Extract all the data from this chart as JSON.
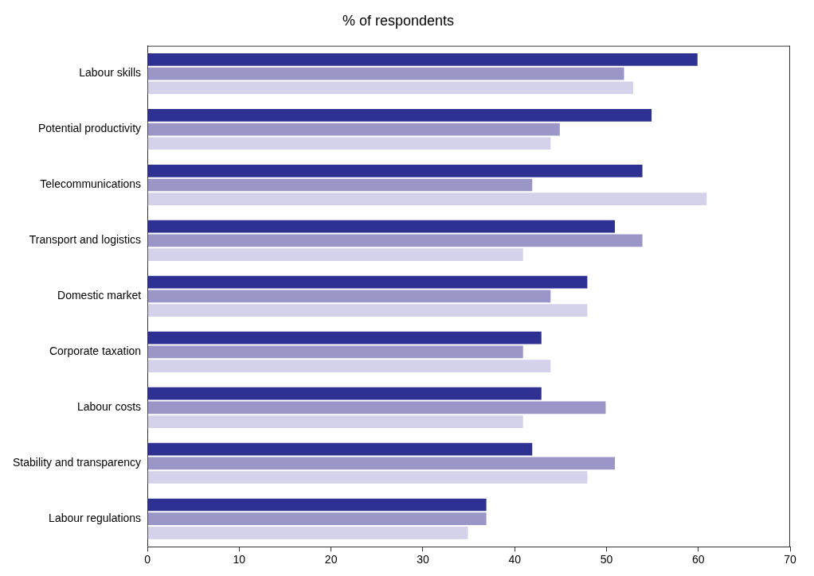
{
  "chart_data": {
    "type": "bar",
    "orientation": "horizontal",
    "title": "% of respondents",
    "categories": [
      "Labour skills",
      "Potential productivity",
      "Telecommunications",
      "Transport and logistics",
      "Domestic market",
      "Corporate taxation",
      "Labour costs",
      "Stability and transparency",
      "Labour regulations"
    ],
    "series": [
      {
        "color": "#2e3192",
        "values": [
          60,
          55,
          54,
          51,
          48,
          43,
          43,
          42,
          37
        ]
      },
      {
        "color": "#9a96c8",
        "values": [
          52,
          45,
          42,
          54,
          44,
          41,
          50,
          51,
          37
        ]
      },
      {
        "color": "#d4d2ea",
        "values": [
          53,
          44,
          61,
          41,
          48,
          44,
          41,
          48,
          35
        ]
      }
    ],
    "xlim": [
      0,
      70
    ],
    "xticks": [
      0,
      10,
      20,
      30,
      40,
      50,
      60,
      70
    ],
    "grid": false,
    "legend": false
  }
}
